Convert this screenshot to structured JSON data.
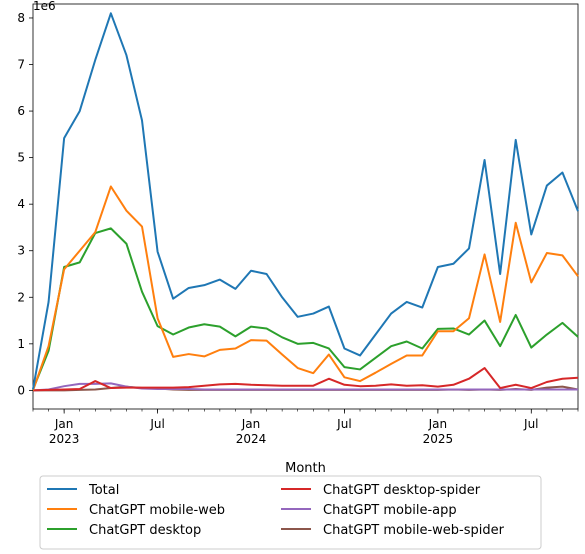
{
  "chart_data": {
    "type": "line",
    "title": "",
    "xlabel": "Month",
    "ylabel": "",
    "y_offset_label": "1e6",
    "ylim": [
      -0.4,
      8.3
    ],
    "yticks": [
      0,
      1,
      2,
      3,
      4,
      5,
      6,
      7,
      8
    ],
    "x_month_range": [
      "2022-11",
      "2025-10"
    ],
    "xticks": [
      {
        "month": "2023-01",
        "label": "Jan",
        "year": "2023"
      },
      {
        "month": "2023-07",
        "label": "Jul",
        "year": ""
      },
      {
        "month": "2024-01",
        "label": "Jan",
        "year": "2024"
      },
      {
        "month": "2024-07",
        "label": "Jul",
        "year": ""
      },
      {
        "month": "2025-01",
        "label": "Jan",
        "year": "2025"
      },
      {
        "month": "2025-07",
        "label": "Jul",
        "year": ""
      }
    ],
    "x": [
      "2022-11",
      "2022-12",
      "2023-01",
      "2023-02",
      "2023-03",
      "2023-04",
      "2023-05",
      "2023-06",
      "2023-07",
      "2023-08",
      "2023-09",
      "2023-10",
      "2023-11",
      "2023-12",
      "2024-01",
      "2024-02",
      "2024-03",
      "2024-04",
      "2024-05",
      "2024-06",
      "2024-07",
      "2024-08",
      "2024-09",
      "2024-10",
      "2024-11",
      "2024-12",
      "2025-01",
      "2025-02",
      "2025-03",
      "2025-04",
      "2025-05",
      "2025-06",
      "2025-07",
      "2025-08",
      "2025-09",
      "2025-10"
    ],
    "legend_location": "below",
    "series": [
      {
        "name": "Total",
        "color": "#1f77b4",
        "values": [
          0.02,
          1.9,
          5.42,
          6.0,
          7.1,
          8.1,
          7.2,
          5.8,
          2.98,
          1.97,
          2.2,
          2.26,
          2.38,
          2.18,
          2.57,
          2.5,
          2.0,
          1.58,
          1.65,
          1.8,
          0.9,
          0.75,
          1.2,
          1.65,
          1.9,
          1.78,
          2.65,
          2.72,
          3.05,
          4.95,
          2.5,
          5.38,
          3.35,
          4.4,
          4.68,
          3.85
        ]
      },
      {
        "name": "ChatGPT mobile-web",
        "color": "#ff7f0e",
        "values": [
          0.0,
          0.95,
          2.6,
          3.0,
          3.4,
          4.38,
          3.86,
          3.52,
          1.55,
          0.72,
          0.78,
          0.73,
          0.87,
          0.9,
          1.08,
          1.07,
          0.77,
          0.48,
          0.37,
          0.77,
          0.28,
          0.2,
          0.38,
          0.57,
          0.75,
          0.75,
          1.27,
          1.27,
          1.55,
          2.92,
          1.47,
          3.6,
          2.32,
          2.95,
          2.9,
          2.45
        ]
      },
      {
        "name": "ChatGPT desktop",
        "color": "#2ca02c",
        "values": [
          0.02,
          0.85,
          2.65,
          2.75,
          3.38,
          3.48,
          3.15,
          2.12,
          1.38,
          1.2,
          1.35,
          1.42,
          1.37,
          1.16,
          1.37,
          1.33,
          1.14,
          1.0,
          1.02,
          0.9,
          0.5,
          0.45,
          0.7,
          0.95,
          1.05,
          0.9,
          1.32,
          1.33,
          1.2,
          1.5,
          0.95,
          1.62,
          0.92,
          1.2,
          1.45,
          1.15
        ]
      },
      {
        "name": "ChatGPT desktop-spider",
        "color": "#d62728",
        "values": [
          0.0,
          0.01,
          0.02,
          0.03,
          0.2,
          0.05,
          0.06,
          0.06,
          0.06,
          0.06,
          0.07,
          0.1,
          0.13,
          0.14,
          0.12,
          0.11,
          0.1,
          0.1,
          0.1,
          0.25,
          0.12,
          0.09,
          0.1,
          0.13,
          0.1,
          0.11,
          0.08,
          0.12,
          0.25,
          0.48,
          0.05,
          0.12,
          0.05,
          0.18,
          0.25,
          0.27
        ]
      },
      {
        "name": "ChatGPT mobile-app",
        "color": "#9467bd",
        "values": [
          0.0,
          0.02,
          0.09,
          0.14,
          0.14,
          0.15,
          0.08,
          0.04,
          0.03,
          0.03,
          0.03,
          0.02,
          0.02,
          0.02,
          0.02,
          0.02,
          0.02,
          0.02,
          0.02,
          0.02,
          0.02,
          0.02,
          0.02,
          0.02,
          0.02,
          0.02,
          0.02,
          0.02,
          0.02,
          0.02,
          0.02,
          0.02,
          0.02,
          0.02,
          0.02,
          0.02
        ]
      },
      {
        "name": "ChatGPT mobile-web-spider",
        "color": "#8c564b",
        "values": [
          0.0,
          0.0,
          0.0,
          0.01,
          0.02,
          0.05,
          0.08,
          0.05,
          0.04,
          0.02,
          0.01,
          0.01,
          0.01,
          0.01,
          0.01,
          0.01,
          0.01,
          0.01,
          0.01,
          0.01,
          0.01,
          0.01,
          0.01,
          0.01,
          0.01,
          0.01,
          0.01,
          0.02,
          0.01,
          0.02,
          0.01,
          0.03,
          0.01,
          0.06,
          0.08,
          0.02
        ]
      }
    ]
  }
}
